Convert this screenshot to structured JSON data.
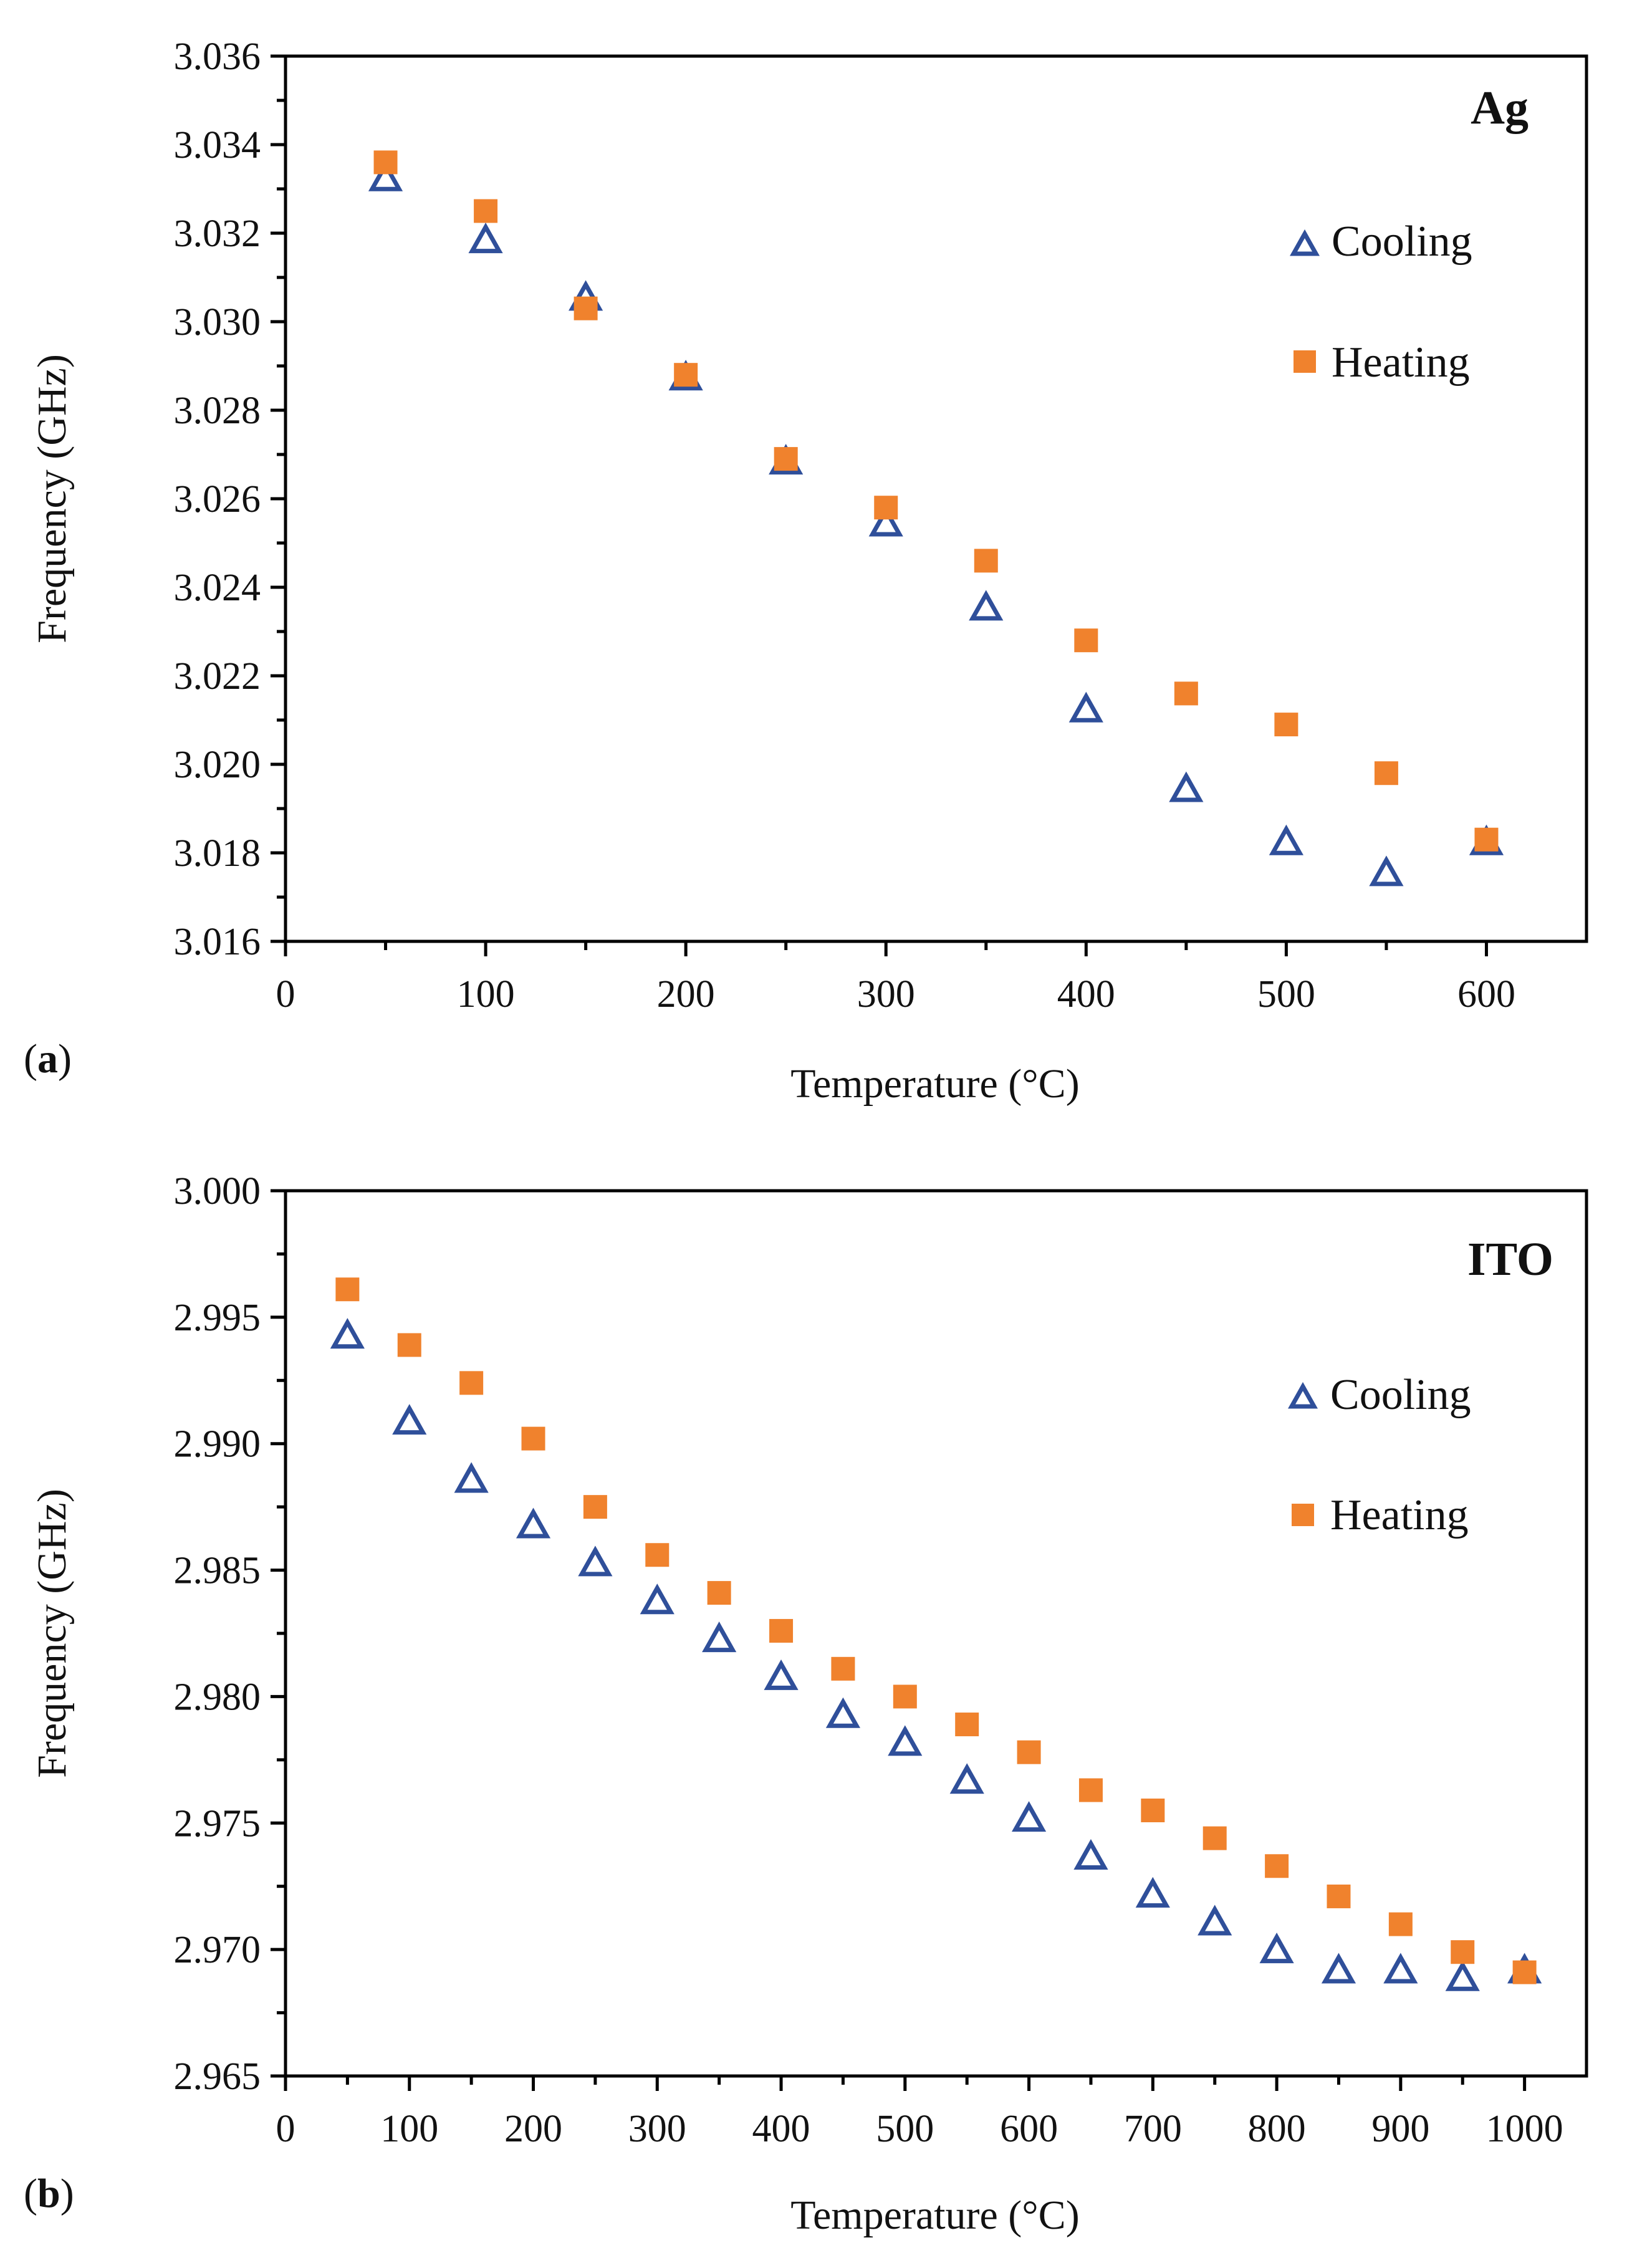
{
  "chart_data": [
    {
      "type": "scatter",
      "panel_label": "a",
      "title": "Ag",
      "xlabel": "Temperature (°C)",
      "ylabel": "Frequency (GHz)",
      "xlim": [
        0,
        650
      ],
      "ylim": [
        3.016,
        3.036
      ],
      "xticks": [
        "0",
        "100",
        "200",
        "300",
        "400",
        "500",
        "600"
      ],
      "xtick_values": [
        0,
        100,
        200,
        300,
        400,
        500,
        600
      ],
      "yticks": [
        "3.016",
        "3.018",
        "3.020",
        "3.022",
        "3.024",
        "3.026",
        "3.028",
        "3.030",
        "3.032",
        "3.034",
        "3.036"
      ],
      "ytick_values": [
        3.016,
        3.018,
        3.02,
        3.022,
        3.024,
        3.026,
        3.028,
        3.03,
        3.032,
        3.034,
        3.036
      ],
      "legend_position": "top-right",
      "series": [
        {
          "name": "Cooling",
          "marker": "open-triangle",
          "color": "#2F4F9A",
          "x": [
            50,
            100,
            150,
            200,
            250,
            300,
            350,
            400,
            450,
            500,
            550,
            600
          ],
          "y": [
            3.0332,
            3.0318,
            3.0305,
            3.0287,
            3.0268,
            3.0254,
            3.0235,
            3.0212,
            3.0194,
            3.0182,
            3.0175,
            3.0182
          ]
        },
        {
          "name": "Heating",
          "marker": "filled-square",
          "color": "#F0822D",
          "x": [
            50,
            100,
            150,
            200,
            250,
            300,
            350,
            400,
            450,
            500,
            550,
            600
          ],
          "y": [
            3.0336,
            3.0325,
            3.0303,
            3.0288,
            3.0269,
            3.0258,
            3.0246,
            3.0228,
            3.0216,
            3.0209,
            3.0198,
            3.0183
          ]
        }
      ]
    },
    {
      "type": "scatter",
      "panel_label": "b",
      "title": "ITO",
      "xlabel": "Temperature (°C)",
      "ylabel": "Frequency (GHz)",
      "xlim": [
        0,
        1050
      ],
      "ylim": [
        2.965,
        3.0
      ],
      "xticks": [
        "0",
        "100",
        "200",
        "300",
        "400",
        "500",
        "600",
        "700",
        "800",
        "900",
        "1000"
      ],
      "xtick_values": [
        0,
        100,
        200,
        300,
        400,
        500,
        600,
        700,
        800,
        900,
        1000
      ],
      "yticks": [
        "2.965",
        "2.970",
        "2.975",
        "2.980",
        "2.985",
        "2.990",
        "2.995",
        "3.000"
      ],
      "ytick_values": [
        2.965,
        2.97,
        2.975,
        2.98,
        2.985,
        2.99,
        2.995,
        3.0
      ],
      "legend_position": "top-right",
      "series": [
        {
          "name": "Cooling",
          "marker": "open-triangle",
          "color": "#2F4F9A",
          "x": [
            50,
            100,
            150,
            200,
            250,
            300,
            350,
            400,
            450,
            500,
            550,
            600,
            650,
            700,
            750,
            800,
            850,
            900,
            950,
            1000
          ],
          "y": [
            2.9942,
            2.9908,
            2.9885,
            2.9867,
            2.9852,
            2.9837,
            2.9822,
            2.9807,
            2.9792,
            2.9781,
            2.9766,
            2.9751,
            2.9736,
            2.9721,
            2.971,
            2.9699,
            2.9691,
            2.9691,
            2.9688,
            2.9691
          ]
        },
        {
          "name": "Heating",
          "marker": "filled-square",
          "color": "#F0822D",
          "x": [
            50,
            100,
            150,
            200,
            250,
            300,
            350,
            400,
            450,
            500,
            550,
            600,
            650,
            700,
            750,
            800,
            850,
            900,
            950,
            1000
          ],
          "y": [
            2.9961,
            2.9939,
            2.9924,
            2.9902,
            2.9875,
            2.9856,
            2.9841,
            2.9826,
            2.9811,
            2.98,
            2.9789,
            2.9778,
            2.9763,
            2.9755,
            2.9744,
            2.9733,
            2.9721,
            2.971,
            2.9699,
            2.9691
          ]
        }
      ]
    }
  ]
}
